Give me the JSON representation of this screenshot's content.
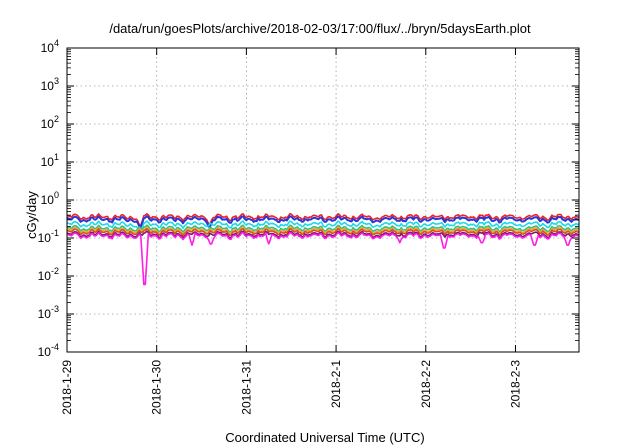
{
  "chart_data": {
    "type": "line",
    "title": "/data/run/goesPlots/archive/2018-02-03/17:00/flux/../bryn/5daysEarth.plot",
    "xlabel": "Coordinated Universal Time (UTC)",
    "ylabel": "cGy/day",
    "yscale": "log",
    "ylim": [
      0.0001,
      10000
    ],
    "yticks": [
      {
        "base": "10",
        "exp": "4"
      },
      {
        "base": "10",
        "exp": "3"
      },
      {
        "base": "10",
        "exp": "2"
      },
      {
        "base": "10",
        "exp": "1"
      },
      {
        "base": "10",
        "exp": "0"
      },
      {
        "base": "10",
        "exp": "-1"
      },
      {
        "base": "10",
        "exp": "-2"
      },
      {
        "base": "10",
        "exp": "-3"
      },
      {
        "base": "10",
        "exp": "-4"
      }
    ],
    "xlim": [
      "2018-01-29",
      "2018-02-03T17:00"
    ],
    "xticks": [
      "2018-1-29",
      "2018-1-30",
      "2018-1-31",
      "2018-2-1",
      "2018-2-2",
      "2018-2-3"
    ],
    "grid": true,
    "legend": "none",
    "series": [
      {
        "color": "#e8242b",
        "level": 0.36,
        "dips": [
          {
            "t": "2018-01-29T19:30",
            "v": 0.22
          },
          {
            "t": "2018-01-30T14:00",
            "v": 0.24
          }
        ]
      },
      {
        "color": "#2d34d6",
        "level": 0.31,
        "dips": [
          {
            "t": "2018-01-29T19:30",
            "v": 0.2
          },
          {
            "t": "2018-01-30T14:00",
            "v": 0.2
          }
        ]
      },
      {
        "color": "#1ad9e8",
        "level": 0.23,
        "dips": [
          {
            "t": "2018-01-29T19:30",
            "v": 0.14
          }
        ]
      },
      {
        "color": "#33c27a",
        "level": 0.18,
        "dips": []
      },
      {
        "color": "#f3a33a",
        "level": 0.16,
        "dips": []
      },
      {
        "color": "#d44f26",
        "level": 0.145,
        "dips": []
      },
      {
        "color": "#7a1a6e",
        "level": 0.125,
        "dips": []
      },
      {
        "color": "#ff1fe6",
        "level": 0.115,
        "dips": [
          {
            "t": "2018-01-29T20:45",
            "v": 0.006
          },
          {
            "t": "2018-01-30T09:30",
            "v": 0.065
          },
          {
            "t": "2018-01-30T14:30",
            "v": 0.07
          },
          {
            "t": "2018-01-31T06:00",
            "v": 0.07
          },
          {
            "t": "2018-02-01T17:00",
            "v": 0.075
          },
          {
            "t": "2018-02-02T05:00",
            "v": 0.055
          },
          {
            "t": "2018-02-02T15:00",
            "v": 0.075
          },
          {
            "t": "2018-02-03T05:00",
            "v": 0.065
          },
          {
            "t": "2018-02-03T14:00",
            "v": 0.065
          }
        ]
      }
    ]
  }
}
